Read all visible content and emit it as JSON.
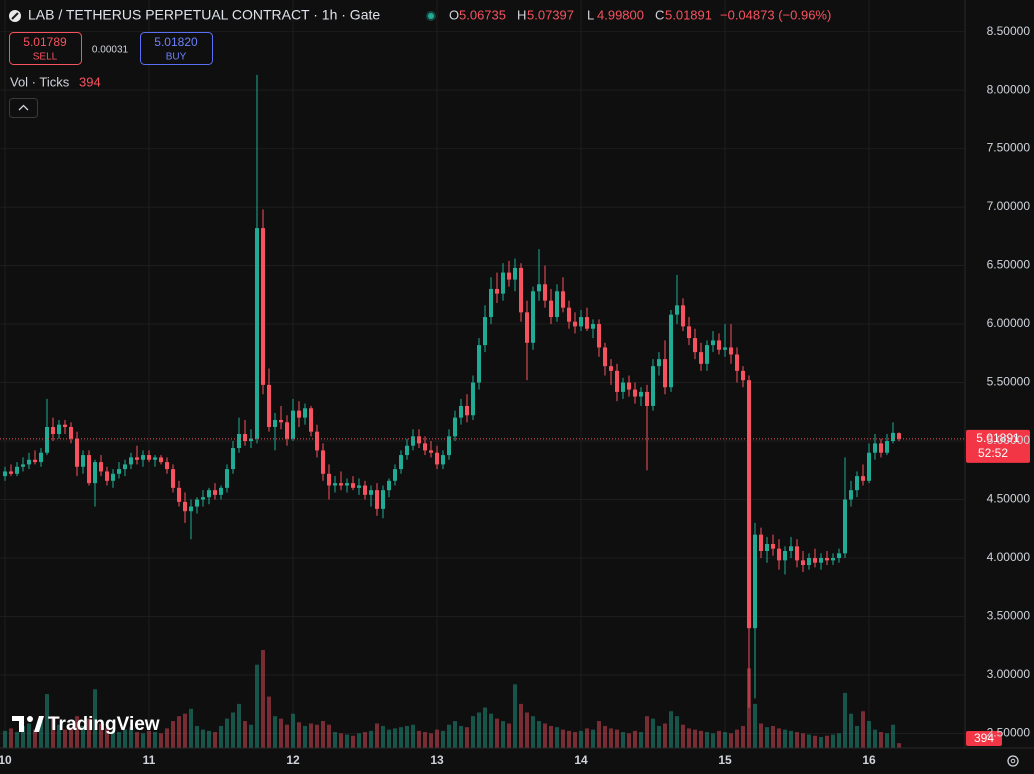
{
  "chart_data": {
    "type": "candlestick",
    "title": "LAB / TETHERUS PERPETUAL CONTRACT · 1h · Gate",
    "legend_keys": [
      "O",
      "H",
      "L",
      "C"
    ],
    "legend_values": [
      "5.06735",
      "5.07397",
      "4.99800",
      "5.01891"
    ],
    "change": "−0.04873 (−0.96%)",
    "up_color": "#22ab94",
    "down_color": "#f7525f",
    "xlim": [
      -0.833,
      160
    ],
    "xticks": [
      {
        "value": 0,
        "label": "10"
      },
      {
        "value": 24,
        "label": "11"
      },
      {
        "value": 48,
        "label": "12"
      },
      {
        "value": 72,
        "label": "13"
      },
      {
        "value": 96,
        "label": "14"
      },
      {
        "value": 120,
        "label": "15"
      },
      {
        "value": 144,
        "label": "16"
      }
    ],
    "ylim": [
      2.376,
      8.77
    ],
    "yticks": [
      {
        "value": 2.5,
        "label": "2.50000"
      },
      {
        "value": 3,
        "label": "3.00000"
      },
      {
        "value": 3.5,
        "label": "3.50000"
      },
      {
        "value": 4,
        "label": "4.00000"
      },
      {
        "value": 4.5,
        "label": "4.50000"
      },
      {
        "value": 5,
        "label": "5.00000"
      },
      {
        "value": 5.5,
        "label": "5.50000"
      },
      {
        "value": 6,
        "label": "6.00000"
      },
      {
        "value": 6.5,
        "label": "6.50000"
      },
      {
        "value": 7,
        "label": "7.00000"
      },
      {
        "value": 7.5,
        "label": "7.50000"
      },
      {
        "value": 8,
        "label": "8.00000"
      },
      {
        "value": 8.5,
        "label": "8.50000"
      }
    ],
    "grid": true,
    "volume_label": "Vol · Ticks",
    "countdown": "52:52",
    "ohlc": [
      [
        4.7,
        4.78,
        4.66,
        4.74
      ],
      [
        4.74,
        4.8,
        4.7,
        4.72
      ],
      [
        4.72,
        4.82,
        4.7,
        4.78
      ],
      [
        4.78,
        4.86,
        4.74,
        4.8
      ],
      [
        4.8,
        4.9,
        4.76,
        4.84
      ],
      [
        4.84,
        4.92,
        4.8,
        4.82
      ],
      [
        4.82,
        4.94,
        4.78,
        4.9
      ],
      [
        4.9,
        5.36,
        4.88,
        5.12
      ],
      [
        5.12,
        5.2,
        5.0,
        5.06
      ],
      [
        5.06,
        5.18,
        5.02,
        5.14
      ],
      [
        5.14,
        5.18,
        5.06,
        5.12
      ],
      [
        5.12,
        5.16,
        4.98,
        5.02
      ],
      [
        5.02,
        5.08,
        4.7,
        4.78
      ],
      [
        4.78,
        4.92,
        4.72,
        4.88
      ],
      [
        4.88,
        4.92,
        4.62,
        4.64
      ],
      [
        4.64,
        4.84,
        4.44,
        4.82
      ],
      [
        4.82,
        4.88,
        4.7,
        4.74
      ],
      [
        4.74,
        4.78,
        4.62,
        4.66
      ],
      [
        4.66,
        4.76,
        4.6,
        4.72
      ],
      [
        4.72,
        4.82,
        4.68,
        4.76
      ],
      [
        4.76,
        4.84,
        4.7,
        4.8
      ],
      [
        4.8,
        4.9,
        4.76,
        4.86
      ],
      [
        4.86,
        4.96,
        4.8,
        4.84
      ],
      [
        4.84,
        4.92,
        4.78,
        4.88
      ],
      [
        4.88,
        4.92,
        4.82,
        4.84
      ],
      [
        4.84,
        4.88,
        4.78,
        4.86
      ],
      [
        4.86,
        4.88,
        4.8,
        4.82
      ],
      [
        4.82,
        4.86,
        4.72,
        4.76
      ],
      [
        4.76,
        4.8,
        4.56,
        4.6
      ],
      [
        4.6,
        4.66,
        4.44,
        4.48
      ],
      [
        4.48,
        4.56,
        4.3,
        4.4
      ],
      [
        4.4,
        4.5,
        4.16,
        4.44
      ],
      [
        4.44,
        4.52,
        4.38,
        4.5
      ],
      [
        4.5,
        4.58,
        4.44,
        4.52
      ],
      [
        4.52,
        4.6,
        4.46,
        4.58
      ],
      [
        4.58,
        4.64,
        4.5,
        4.54
      ],
      [
        4.54,
        4.62,
        4.5,
        4.6
      ],
      [
        4.6,
        4.8,
        4.56,
        4.76
      ],
      [
        4.76,
        5.0,
        4.72,
        4.94
      ],
      [
        4.94,
        5.2,
        4.9,
        5.06
      ],
      [
        5.06,
        5.18,
        4.96,
        5.0
      ],
      [
        5.0,
        5.1,
        4.94,
        5.02
      ],
      [
        5.02,
        8.13,
        4.98,
        6.82
      ],
      [
        6.82,
        6.98,
        5.4,
        5.48
      ],
      [
        5.48,
        5.62,
        5.08,
        5.12
      ],
      [
        5.12,
        5.24,
        4.92,
        5.18
      ],
      [
        5.18,
        5.3,
        5.1,
        5.16
      ],
      [
        5.16,
        5.22,
        4.96,
        5.02
      ],
      [
        5.02,
        5.36,
        5.0,
        5.26
      ],
      [
        5.26,
        5.34,
        5.12,
        5.2
      ],
      [
        5.2,
        5.32,
        5.14,
        5.28
      ],
      [
        5.28,
        5.3,
        5.04,
        5.08
      ],
      [
        5.08,
        5.14,
        4.86,
        4.92
      ],
      [
        4.92,
        4.98,
        4.66,
        4.72
      ],
      [
        4.72,
        4.8,
        4.5,
        4.62
      ],
      [
        4.62,
        4.7,
        4.56,
        4.64
      ],
      [
        4.64,
        4.74,
        4.58,
        4.62
      ],
      [
        4.62,
        4.68,
        4.56,
        4.64
      ],
      [
        4.64,
        4.7,
        4.58,
        4.6
      ],
      [
        4.6,
        4.68,
        4.54,
        4.62
      ],
      [
        4.62,
        4.66,
        4.5,
        4.54
      ],
      [
        4.54,
        4.62,
        4.44,
        4.58
      ],
      [
        4.58,
        4.64,
        4.36,
        4.42
      ],
      [
        4.42,
        4.62,
        4.34,
        4.58
      ],
      [
        4.58,
        4.68,
        4.52,
        4.66
      ],
      [
        4.66,
        4.8,
        4.62,
        4.76
      ],
      [
        4.76,
        4.92,
        4.72,
        4.88
      ],
      [
        4.88,
        5.02,
        4.84,
        4.96
      ],
      [
        4.96,
        5.1,
        4.92,
        5.04
      ],
      [
        5.04,
        5.1,
        4.94,
        4.98
      ],
      [
        4.98,
        5.04,
        4.88,
        4.92
      ],
      [
        4.92,
        5.0,
        4.86,
        4.9
      ],
      [
        4.9,
        4.96,
        4.76,
        4.8
      ],
      [
        4.8,
        4.92,
        4.76,
        4.88
      ],
      [
        4.88,
        5.1,
        4.84,
        5.04
      ],
      [
        5.04,
        5.26,
        5.0,
        5.2
      ],
      [
        5.2,
        5.36,
        5.14,
        5.3
      ],
      [
        5.3,
        5.4,
        5.16,
        5.22
      ],
      [
        5.22,
        5.56,
        5.18,
        5.5
      ],
      [
        5.5,
        5.88,
        5.44,
        5.82
      ],
      [
        5.82,
        6.16,
        5.76,
        6.06
      ],
      [
        6.06,
        6.4,
        6.0,
        6.3
      ],
      [
        6.3,
        6.44,
        6.18,
        6.26
      ],
      [
        6.26,
        6.52,
        6.2,
        6.44
      ],
      [
        6.44,
        6.54,
        6.32,
        6.38
      ],
      [
        6.38,
        6.56,
        6.28,
        6.48
      ],
      [
        6.48,
        6.52,
        6.02,
        6.1
      ],
      [
        6.1,
        6.2,
        5.52,
        5.84
      ],
      [
        5.84,
        6.32,
        5.78,
        6.28
      ],
      [
        6.28,
        6.64,
        6.2,
        6.34
      ],
      [
        6.34,
        6.5,
        6.14,
        6.2
      ],
      [
        6.2,
        6.3,
        6.0,
        6.06
      ],
      [
        6.06,
        6.34,
        6.02,
        6.28
      ],
      [
        6.28,
        6.4,
        6.1,
        6.14
      ],
      [
        6.14,
        6.2,
        5.96,
        6.02
      ],
      [
        6.02,
        6.1,
        5.92,
        5.98
      ],
      [
        5.98,
        6.12,
        5.94,
        6.06
      ],
      [
        6.06,
        6.14,
        5.94,
        5.96
      ],
      [
        5.96,
        6.04,
        5.88,
        6.0
      ],
      [
        6.0,
        6.04,
        5.72,
        5.8
      ],
      [
        5.8,
        5.84,
        5.56,
        5.64
      ],
      [
        5.64,
        5.7,
        5.48,
        5.6
      ],
      [
        5.6,
        5.66,
        5.34,
        5.42
      ],
      [
        5.42,
        5.54,
        5.36,
        5.5
      ],
      [
        5.5,
        5.56,
        5.38,
        5.44
      ],
      [
        5.44,
        5.5,
        5.32,
        5.38
      ],
      [
        5.38,
        5.46,
        5.3,
        5.42
      ],
      [
        5.42,
        5.48,
        4.75,
        5.3
      ],
      [
        5.3,
        5.7,
        5.26,
        5.64
      ],
      [
        5.64,
        5.76,
        5.56,
        5.7
      ],
      [
        5.7,
        5.86,
        5.4,
        5.46
      ],
      [
        5.46,
        6.12,
        5.42,
        6.08
      ],
      [
        6.08,
        6.42,
        6.0,
        6.16
      ],
      [
        6.16,
        6.22,
        5.94,
        5.98
      ],
      [
        5.98,
        6.06,
        5.82,
        5.88
      ],
      [
        5.88,
        5.96,
        5.7,
        5.76
      ],
      [
        5.76,
        5.84,
        5.6,
        5.66
      ],
      [
        5.66,
        5.86,
        5.6,
        5.82
      ],
      [
        5.82,
        5.94,
        5.76,
        5.86
      ],
      [
        5.86,
        5.92,
        5.74,
        5.78
      ],
      [
        5.78,
        6.0,
        5.72,
        5.8
      ],
      [
        5.8,
        6.0,
        5.66,
        5.74
      ],
      [
        5.74,
        5.8,
        5.5,
        5.6
      ],
      [
        5.6,
        5.64,
        5.46,
        5.52
      ],
      [
        5.52,
        5.56,
        2.72,
        3.4
      ],
      [
        3.4,
        4.3,
        2.8,
        4.2
      ],
      [
        4.2,
        4.26,
        4.0,
        4.06
      ],
      [
        4.06,
        4.18,
        3.96,
        4.12
      ],
      [
        4.12,
        4.2,
        4.02,
        4.08
      ],
      [
        4.08,
        4.16,
        3.9,
        3.98
      ],
      [
        3.98,
        4.1,
        3.86,
        4.06
      ],
      [
        4.06,
        4.18,
        4.0,
        4.1
      ],
      [
        4.1,
        4.16,
        3.92,
        3.98
      ],
      [
        3.98,
        4.06,
        3.88,
        3.94
      ],
      [
        3.94,
        4.04,
        3.9,
        4.0
      ],
      [
        4.0,
        4.08,
        3.92,
        3.96
      ],
      [
        3.96,
        4.04,
        3.9,
        4.0
      ],
      [
        4.0,
        4.06,
        3.94,
        3.98
      ],
      [
        3.98,
        4.04,
        3.94,
        4.0
      ],
      [
        4.0,
        4.08,
        3.96,
        4.04
      ],
      [
        4.04,
        4.86,
        4.0,
        4.5
      ],
      [
        4.5,
        4.66,
        4.44,
        4.58
      ],
      [
        4.58,
        4.74,
        4.52,
        4.7
      ],
      [
        4.7,
        4.8,
        4.62,
        4.66
      ],
      [
        4.66,
        4.98,
        4.64,
        4.9
      ],
      [
        4.9,
        5.06,
        4.84,
        4.98
      ],
      [
        4.98,
        5.02,
        4.86,
        4.9
      ],
      [
        4.9,
        5.06,
        4.88,
        5.0
      ],
      [
        5.0,
        5.16,
        4.98,
        5.07
      ],
      [
        5.06735,
        5.07397,
        4.998,
        5.01891
      ]
    ],
    "volume": [
      1400,
      1600,
      1300,
      1800,
      2000,
      1500,
      2200,
      4400,
      2600,
      1900,
      1500,
      1700,
      2600,
      1800,
      2400,
      4800,
      2000,
      1600,
      1400,
      1300,
      1500,
      1700,
      1300,
      1200,
      1400,
      1300,
      1200,
      1600,
      2200,
      2600,
      2800,
      3200,
      1800,
      1500,
      1400,
      1300,
      1800,
      2400,
      2900,
      3600,
      2200,
      1900,
      6800,
      8000,
      4200,
      2600,
      2400,
      1900,
      2800,
      2100,
      1800,
      2000,
      1900,
      2200,
      1900,
      1300,
      1200,
      1100,
      1000,
      1200,
      1300,
      1400,
      2000,
      1800,
      1500,
      1600,
      1700,
      1800,
      1900,
      1400,
      1300,
      1200,
      1500,
      1400,
      1900,
      2200,
      1800,
      1700,
      2600,
      2900,
      3300,
      2800,
      2400,
      2200,
      2000,
      5200,
      3600,
      2900,
      2600,
      2200,
      2000,
      1800,
      1700,
      1500,
      1400,
      1300,
      1400,
      1600,
      1500,
      2200,
      1800,
      1600,
      1500,
      1300,
      1200,
      1400,
      1300,
      2600,
      2400,
      1800,
      2000,
      3000,
      2600,
      1900,
      1600,
      1500,
      1400,
      1300,
      1200,
      1400,
      1300,
      1200,
      1500,
      1800,
      6500,
      3600,
      2000,
      1700,
      1800,
      1600,
      1500,
      1400,
      1300,
      1200,
      1100,
      1000,
      900,
      1000,
      1100,
      1200,
      4500,
      2800,
      1800,
      3000,
      2200,
      1500,
      1300,
      1200,
      1900,
      394
    ]
  },
  "trade_panel": {
    "sell_price": "5.01789",
    "sell": "SELL",
    "spread": "0.00031",
    "buy_price": "5.01820",
    "buy": "BUY"
  },
  "brand": "TradingView"
}
